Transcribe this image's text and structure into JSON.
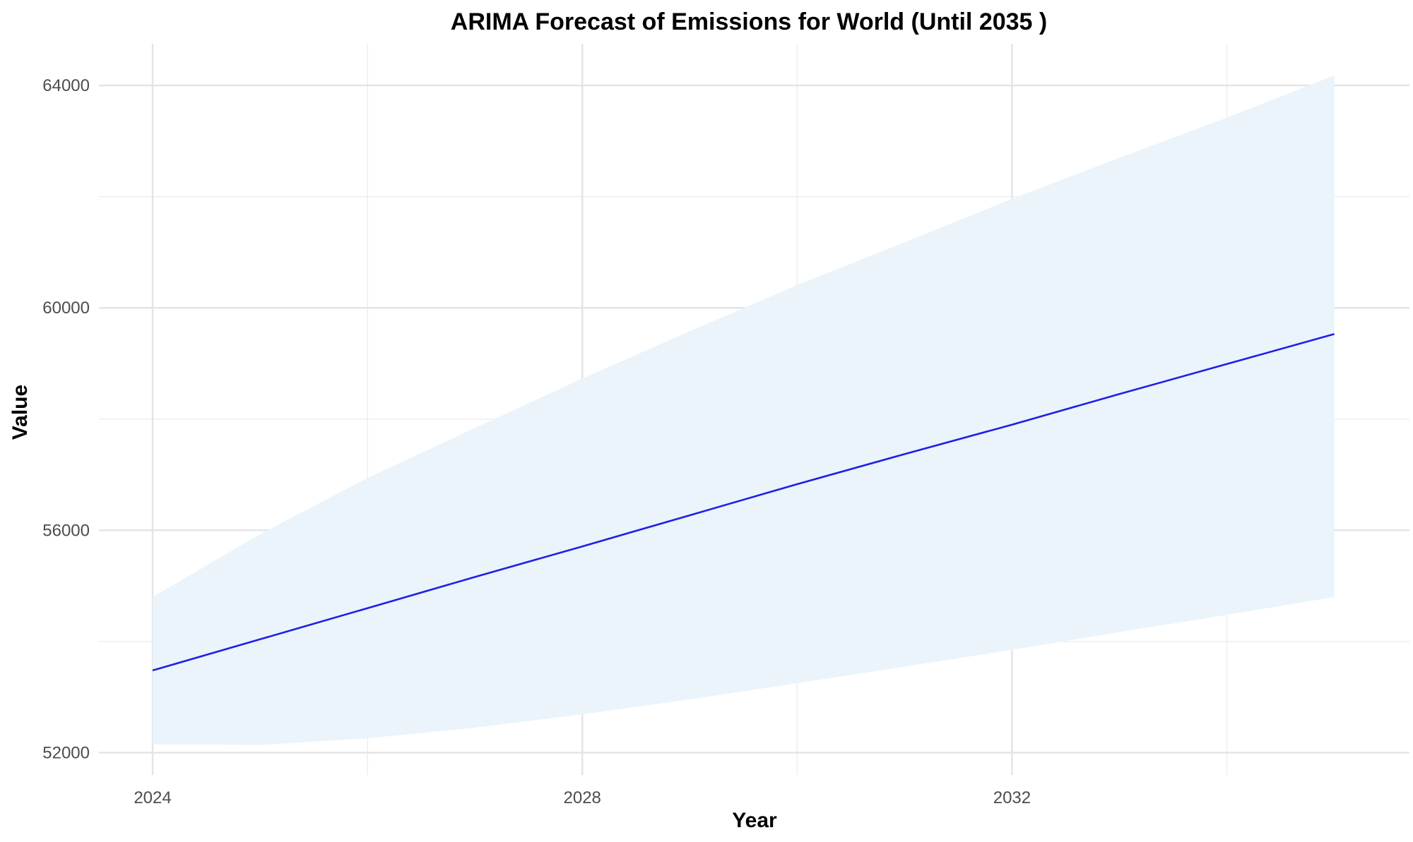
{
  "chart_data": {
    "type": "line",
    "title": "ARIMA Forecast of Emissions for World (Until 2035 )",
    "xlabel": "Year",
    "ylabel": "Value",
    "xlim": [
      2023.5,
      2035.7
    ],
    "ylim": [
      51600,
      64750
    ],
    "x_ticks": [
      2024,
      2028,
      2032
    ],
    "x_minor_ticks": [
      2026,
      2030,
      2034
    ],
    "y_ticks": [
      52000,
      56000,
      60000,
      64000
    ],
    "y_minor_ticks": [
      54000,
      58000,
      62000
    ],
    "grid": true,
    "legend": "none",
    "colors": {
      "line": "#1f1fe6",
      "band": "#eaf4fa"
    },
    "series": [
      {
        "x": [
          2024,
          2025,
          2026,
          2027,
          2028,
          2029,
          2030,
          2031,
          2032,
          2033,
          2034,
          2035
        ],
        "values": [
          53480,
          54040,
          54600,
          55160,
          55710,
          56270,
          56830,
          57370,
          57900,
          58450,
          58990,
          59530
        ],
        "lower": [
          52150,
          52140,
          52260,
          52450,
          52690,
          52960,
          53250,
          53550,
          53850,
          54170,
          54480,
          54800
        ],
        "upper": [
          54800,
          55930,
          56940,
          57840,
          58730,
          59580,
          60410,
          61180,
          61960,
          62700,
          63420,
          64180
        ]
      }
    ]
  }
}
